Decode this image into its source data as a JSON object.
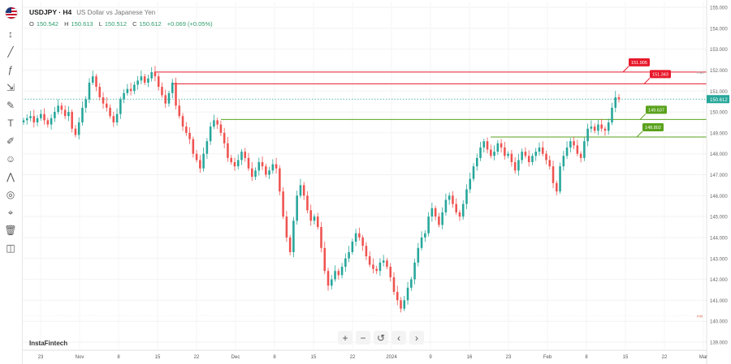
{
  "header": {
    "symbol": "USDJPY · H4",
    "description": "US Dollar vs Japanese Yen"
  },
  "ohlc": {
    "o_label": "O",
    "o": "150.542",
    "h_label": "H",
    "h": "150.613",
    "l_label": "L",
    "l": "150.512",
    "c_label": "C",
    "c": "150.612",
    "change": "+0.069 (+0.05%)"
  },
  "watermark": "InstaFintech",
  "nav": {
    "zoom_in": "+",
    "zoom_out": "−",
    "reset": "↺",
    "back": "‹",
    "forward": "›"
  },
  "toolbar": [
    "crosshair-icon",
    "trend-line-icon",
    "fib-icon",
    "measure-icon",
    "brush-icon",
    "text-icon",
    "pencil-icon",
    "emoji-icon",
    "pattern-icon",
    "magnet-icon",
    "lock-icon",
    "trash-icon",
    "camera-icon"
  ],
  "colors": {
    "up": "#26a69a",
    "down": "#ef5350",
    "resistance": "#e8192c",
    "support": "#5aa21c",
    "current": "#26a69a"
  },
  "chart_data": {
    "type": "candlestick",
    "title": "USDJPY · H4",
    "ylim": [
      139.0,
      155.0
    ],
    "y_ticks": [
      "155.000",
      "154.000",
      "153.000",
      "152.000",
      "151.000",
      "150.000",
      "149.000",
      "148.000",
      "147.000",
      "146.000",
      "145.000",
      "144.000",
      "143.000",
      "142.000",
      "141.000",
      "140.000",
      "139.000"
    ],
    "x_ticks": [
      "23",
      "Nov",
      "8",
      "15",
      "22",
      "Dec",
      "8",
      "15",
      "22",
      "2024",
      "9",
      "16",
      "23",
      "Feb",
      "8",
      "15",
      "22",
      "Mar"
    ],
    "current_price": "150.612",
    "horizontal_levels": [
      {
        "label": "151.905",
        "value": 151.905,
        "kind": "resistance"
      },
      {
        "label": "151.343",
        "value": 151.343,
        "kind": "resistance"
      },
      {
        "label": "149.637",
        "value": 149.637,
        "kind": "support"
      },
      {
        "label": "148.802",
        "value": 148.802,
        "kind": "support"
      }
    ],
    "max_marker": "max",
    "min_marker": "min",
    "series": [
      {
        "name": "USDJPY",
        "close": [
          149.6,
          149.7,
          149.8,
          149.5,
          149.7,
          149.9,
          149.6,
          149.4,
          149.7,
          150.0,
          150.3,
          150.1,
          149.8,
          150.0,
          149.2,
          148.9,
          149.5,
          150.2,
          150.6,
          151.4,
          151.7,
          151.2,
          150.7,
          150.4,
          150.2,
          149.8,
          149.5,
          149.9,
          150.6,
          150.9,
          151.1,
          151.0,
          151.3,
          151.5,
          151.7,
          151.4,
          151.6,
          151.9,
          151.7,
          151.2,
          150.8,
          150.4,
          150.9,
          151.4,
          150.3,
          149.8,
          149.3,
          149.0,
          148.7,
          148.0,
          147.7,
          147.3,
          148.0,
          148.6,
          149.3,
          149.6,
          149.4,
          149.0,
          148.5,
          147.8,
          147.6,
          147.4,
          147.7,
          148.1,
          147.8,
          147.3,
          146.9,
          147.2,
          147.6,
          147.4,
          147.0,
          147.2,
          147.5,
          147.3,
          146.2,
          145.0,
          144.0,
          143.3,
          144.8,
          146.0,
          146.5,
          146.0,
          145.3,
          144.8,
          145.0,
          144.5,
          143.5,
          142.4,
          141.7,
          142.0,
          142.4,
          142.2,
          142.6,
          143.0,
          143.3,
          143.8,
          144.2,
          144.0,
          143.6,
          143.1,
          142.7,
          142.5,
          142.4,
          142.8,
          142.9,
          142.6,
          142.1,
          141.4,
          141.0,
          140.6,
          141.0,
          141.6,
          142.0,
          142.8,
          143.5,
          144.0,
          144.2,
          145.0,
          145.4,
          145.0,
          144.6,
          145.2,
          145.8,
          146.0,
          145.6,
          145.2,
          145.0,
          145.6,
          146.3,
          146.8,
          147.4,
          147.8,
          148.3,
          148.6,
          148.2,
          147.9,
          148.1,
          148.5,
          148.3,
          147.9,
          148.0,
          147.6,
          147.2,
          147.7,
          148.1,
          147.9,
          147.6,
          147.9,
          148.1,
          148.3,
          148.0,
          147.7,
          147.4,
          146.6,
          146.2,
          147.4,
          147.9,
          148.3,
          148.6,
          148.4,
          148.0,
          147.8,
          148.6,
          149.2,
          149.3,
          149.1,
          149.4,
          149.2,
          149.1,
          149.5,
          150.2,
          150.7,
          150.6
        ]
      }
    ]
  }
}
